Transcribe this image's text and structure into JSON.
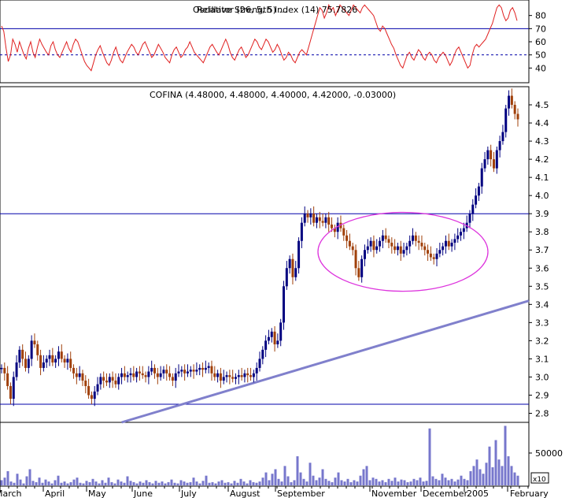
{
  "chart_data": [
    {
      "type": "line",
      "panel": "indicator",
      "title": "Relative Strength Index (14) 75.7826",
      "overlay_title": "Oscillator (26, 5, 5) ...",
      "y_ticks": [
        80,
        70,
        60,
        50,
        40
      ],
      "ylim": [
        30,
        90
      ],
      "reference_lines": [
        {
          "value": 70,
          "style": "solid"
        },
        {
          "value": 50,
          "style": "dashed"
        }
      ],
      "line_color": "#e02020",
      "series": [
        {
          "values": [
            72,
            68,
            55,
            45,
            50,
            62,
            58,
            52,
            60,
            55,
            50,
            47,
            55,
            60,
            52,
            48,
            56,
            62,
            58,
            55,
            52,
            50,
            57,
            60,
            54,
            50,
            48,
            52,
            56,
            60,
            55,
            52,
            58,
            62,
            60,
            55,
            50,
            45,
            42,
            40,
            38,
            44,
            50,
            54,
            57,
            52,
            48,
            44,
            42,
            46,
            52,
            56,
            50,
            46,
            44,
            48,
            52,
            55,
            58,
            56,
            52,
            50,
            54,
            58,
            60,
            56,
            52,
            48,
            50,
            54,
            58,
            55,
            52,
            48,
            46,
            44,
            50,
            54,
            56,
            52,
            48,
            50,
            54,
            56,
            60,
            56,
            52,
            50,
            48,
            46,
            44,
            48,
            52,
            56,
            58,
            55,
            52,
            50,
            54,
            58,
            62,
            58,
            52,
            48,
            46,
            50,
            54,
            56,
            52,
            48,
            50,
            54,
            58,
            62,
            60,
            56,
            54,
            58,
            62,
            60,
            56,
            52,
            54,
            58,
            55,
            50,
            46,
            48,
            52,
            50,
            46,
            44,
            48,
            52,
            54,
            52,
            50,
            56,
            62,
            68,
            74,
            80,
            86,
            84,
            78,
            82,
            88,
            84,
            86,
            80,
            84,
            88,
            86,
            84,
            82,
            80,
            84,
            88,
            86,
            84,
            82,
            86,
            88,
            86,
            84,
            82,
            80,
            75,
            70,
            68,
            72,
            70,
            66,
            62,
            58,
            55,
            50,
            46,
            42,
            40,
            45,
            50,
            52,
            48,
            46,
            50,
            54,
            52,
            48,
            46,
            50,
            52,
            50,
            46,
            44,
            48,
            50,
            52,
            50,
            46,
            42,
            45,
            50,
            54,
            56,
            52,
            48,
            44,
            40,
            42,
            50,
            56,
            58,
            56,
            58,
            60,
            62,
            66,
            70,
            74,
            80,
            86,
            88,
            86,
            80,
            76,
            78,
            84,
            86,
            82,
            76
          ]
        }
      ]
    },
    {
      "type": "candlestick",
      "panel": "price",
      "title": "COFINA (4.48000, 4.48000, 4.40000, 4.42000, -0.03000)",
      "y_ticks": [
        4.5,
        4.4,
        4.3,
        4.2,
        4.1,
        4.0,
        3.9,
        3.8,
        3.7,
        3.6,
        3.5,
        3.4,
        3.3,
        3.2,
        3.1,
        3.0,
        2.9,
        2.8
      ],
      "ylim": [
        2.75,
        4.6
      ],
      "x_tick_labels": [
        "March",
        "April",
        "May",
        "June",
        "July",
        "August",
        "September",
        "November",
        "December",
        "2005",
        "February"
      ],
      "horizontal_lines": [
        3.9,
        2.85
      ],
      "trendline": {
        "start": [
          0.23,
          2.75
        ],
        "end": [
          1.0,
          3.42
        ],
        "color": "#8080cc"
      },
      "annotation": "ellipse",
      "up_color": "#000080",
      "down_color": "#a0400a",
      "closes": [
        3.05,
        3.02,
        2.95,
        2.88,
        3.0,
        3.08,
        3.15,
        3.1,
        3.05,
        3.1,
        3.2,
        3.18,
        3.12,
        3.05,
        3.08,
        3.1,
        3.12,
        3.08,
        3.1,
        3.14,
        3.1,
        3.08,
        3.1,
        3.05,
        3.02,
        3.0,
        3.02,
        2.98,
        2.95,
        2.9,
        2.88,
        2.92,
        2.96,
        3.0,
        2.98,
        2.97,
        3.0,
        2.98,
        2.96,
        3.0,
        3.02,
        3.0,
        3.01,
        3.02,
        3.0,
        3.03,
        3.02,
        3.01,
        3.0,
        3.03,
        3.05,
        3.02,
        3.0,
        3.02,
        3.04,
        3.02,
        3.0,
        2.98,
        3.02,
        3.03,
        3.04,
        3.02,
        3.03,
        3.04,
        3.03,
        3.04,
        3.05,
        3.04,
        3.05,
        3.06,
        3.02,
        3.0,
        3.02,
        2.98,
        3.0,
        3.01,
        3.0,
        2.99,
        3.0,
        3.01,
        3.0,
        3.02,
        3.01,
        3.0,
        3.02,
        3.05,
        3.1,
        3.15,
        3.2,
        3.22,
        3.25,
        3.18,
        3.2,
        3.3,
        3.5,
        3.6,
        3.65,
        3.55,
        3.6,
        3.75,
        3.85,
        3.9,
        3.88,
        3.9,
        3.85,
        3.88,
        3.86,
        3.85,
        3.88,
        3.84,
        3.82,
        3.8,
        3.85,
        3.82,
        3.78,
        3.75,
        3.72,
        3.7,
        3.6,
        3.55,
        3.65,
        3.7,
        3.72,
        3.75,
        3.7,
        3.72,
        3.75,
        3.78,
        3.76,
        3.74,
        3.72,
        3.7,
        3.72,
        3.68,
        3.7,
        3.72,
        3.75,
        3.78,
        3.75,
        3.74,
        3.72,
        3.7,
        3.68,
        3.66,
        3.65,
        3.68,
        3.7,
        3.72,
        3.75,
        3.72,
        3.74,
        3.76,
        3.78,
        3.8,
        3.82,
        3.85,
        3.9,
        3.95,
        4.0,
        4.05,
        4.15,
        4.2,
        4.25,
        4.2,
        4.15,
        4.25,
        4.3,
        4.35,
        4.48,
        4.55,
        4.5,
        4.45,
        4.42
      ]
    },
    {
      "type": "bar",
      "panel": "volume",
      "y_ticks": [
        50000
      ],
      "ylim": [
        0,
        95000
      ],
      "multiplier_label": "x10",
      "bar_color": "#7777cc",
      "values": [
        8000,
        12000,
        22000,
        6000,
        4000,
        18000,
        9000,
        3000,
        14000,
        25000,
        7000,
        5000,
        12000,
        4000,
        9000,
        6000,
        3000,
        8000,
        15000,
        4000,
        6000,
        3000,
        5000,
        9000,
        12000,
        4000,
        3000,
        7000,
        5000,
        10000,
        6000,
        3000,
        8000,
        4000,
        12000,
        5000,
        3000,
        9000,
        6000,
        4000,
        14000,
        7000,
        5000,
        3000,
        6000,
        4000,
        8000,
        5000,
        3000,
        7000,
        4000,
        6000,
        3000,
        5000,
        9000,
        4000,
        3000,
        8000,
        6000,
        4000,
        5000,
        12000,
        6000,
        3000,
        7000,
        15000,
        4000,
        5000,
        3000,
        6000,
        8000,
        4000,
        5000,
        3000,
        7000,
        4000,
        10000,
        6000,
        3000,
        8000,
        5000,
        4000,
        6000,
        12000,
        20000,
        8000,
        18000,
        25000,
        10000,
        6000,
        30000,
        14000,
        5000,
        8000,
        45000,
        20000,
        10000,
        6000,
        35000,
        15000,
        8000,
        12000,
        25000,
        10000,
        7000,
        5000,
        12000,
        20000,
        8000,
        6000,
        10000,
        5000,
        8000,
        6000,
        15000,
        25000,
        30000,
        8000,
        12000,
        10000,
        6000,
        8000,
        5000,
        10000,
        7000,
        12000,
        6000,
        9000,
        8000,
        5000,
        6000,
        10000,
        8000,
        12000,
        6000,
        7000,
        88000,
        14000,
        10000,
        8000,
        18000,
        12000,
        8000,
        10000,
        6000,
        9000,
        15000,
        10000,
        8000,
        22000,
        30000,
        40000,
        25000,
        18000,
        35000,
        60000,
        28000,
        70000,
        40000,
        30000,
        92000,
        45000,
        30000,
        20000,
        15000
      ]
    }
  ]
}
